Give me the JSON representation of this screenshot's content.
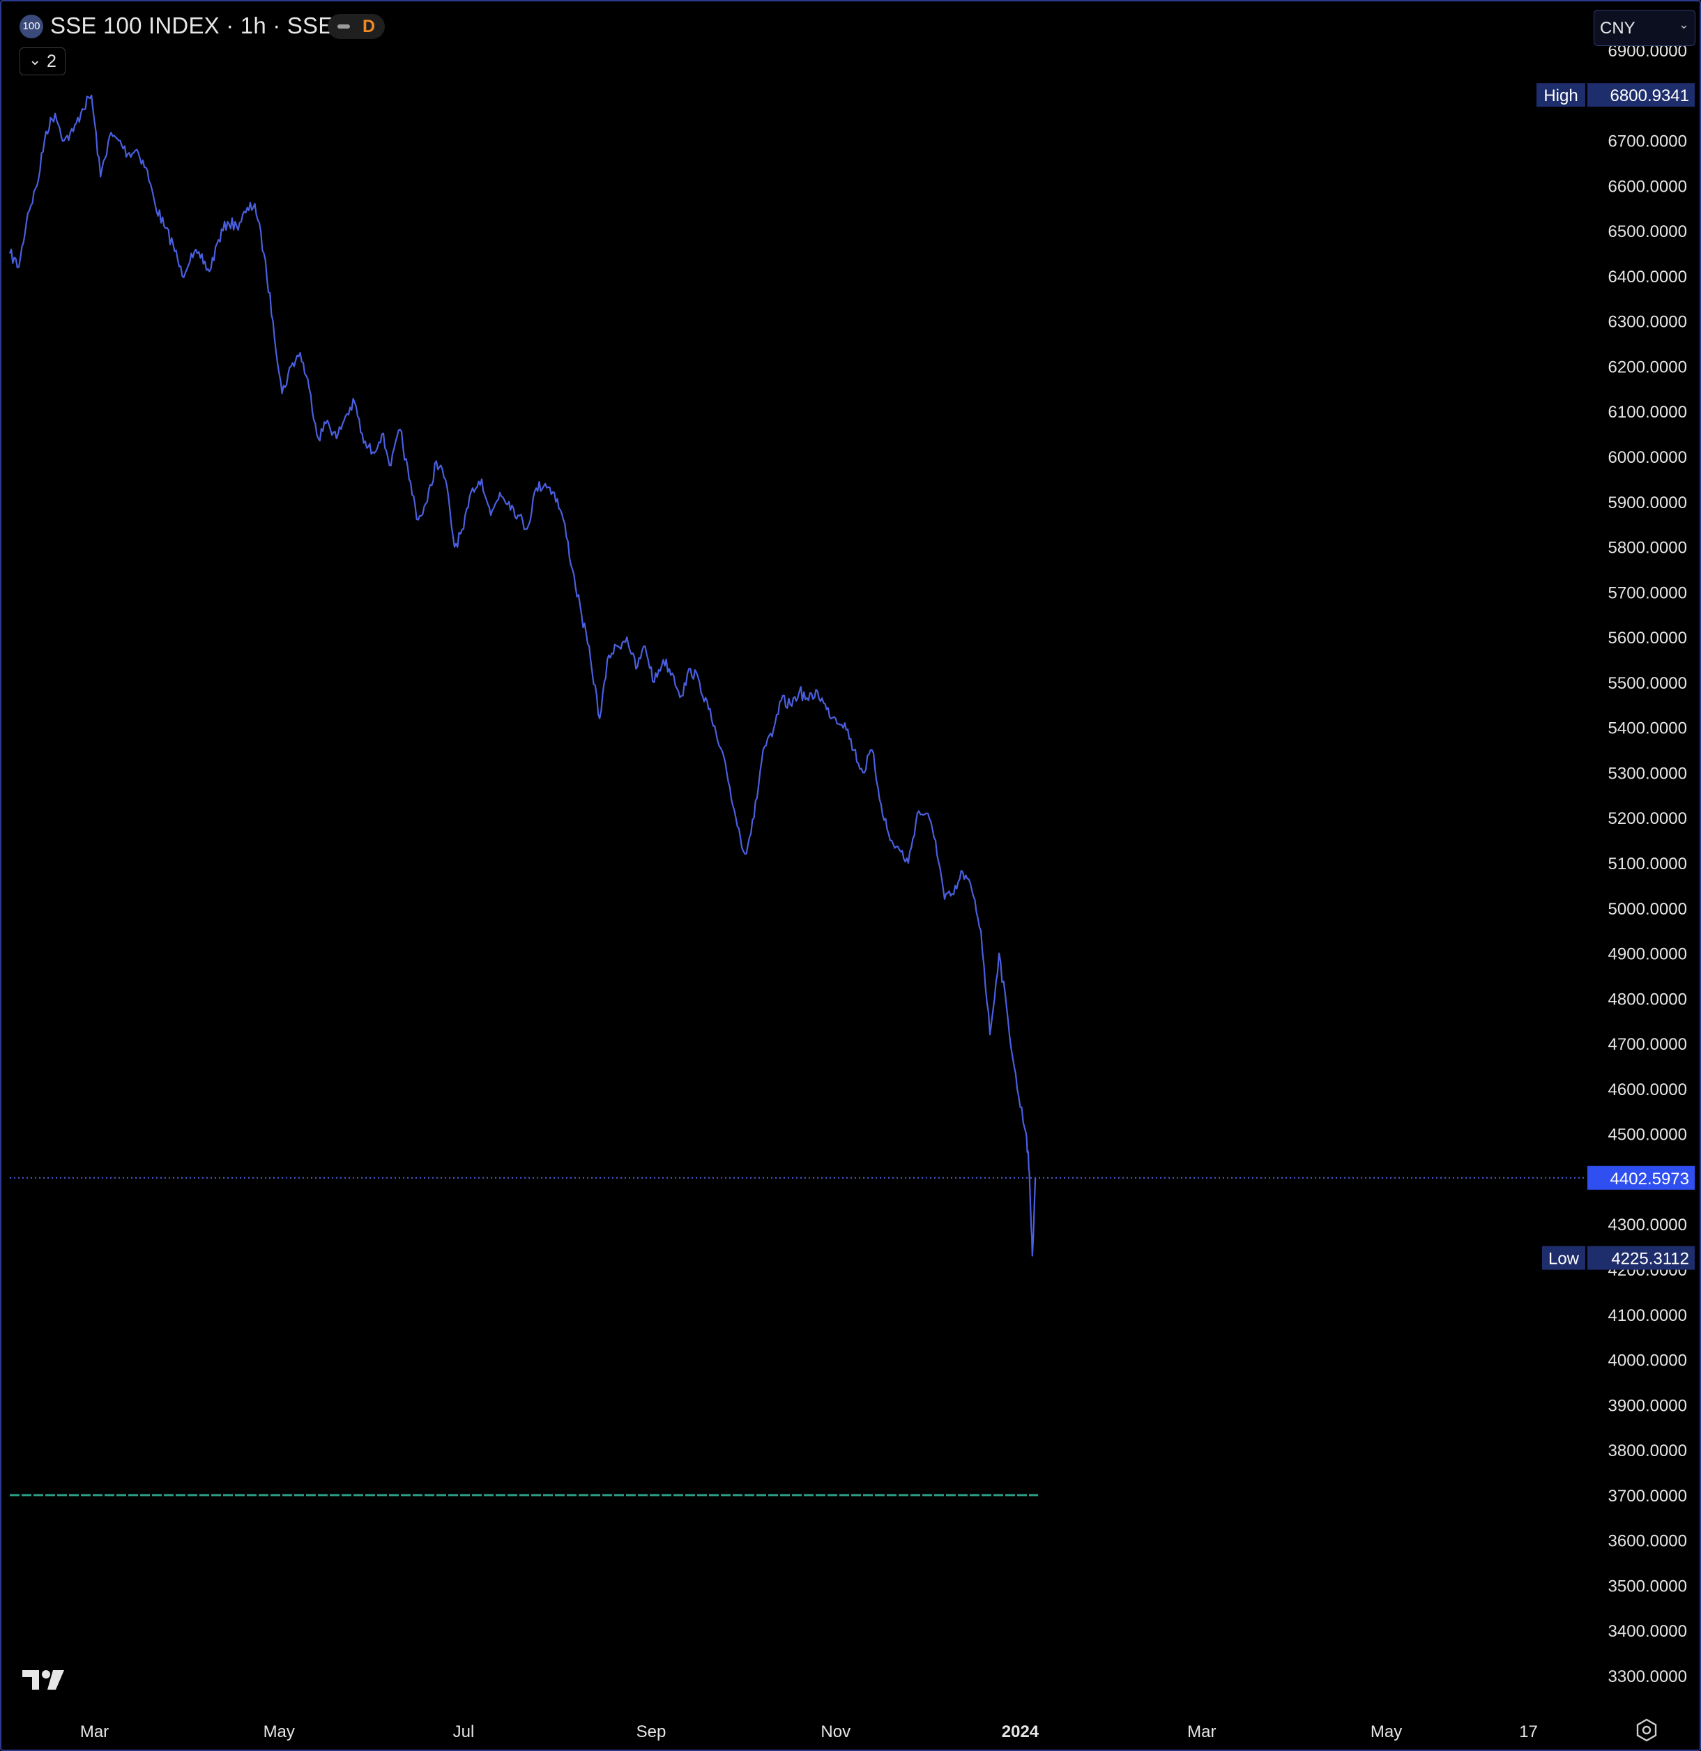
{
  "header": {
    "symbol_badge": "100",
    "title": "SSE 100 INDEX · 1h · SSE",
    "interval_badge": "D",
    "collapse_count": "2",
    "currency": "CNY"
  },
  "colors": {
    "line": "#4a5fe0",
    "accent_label_bg": "#1e2d6b",
    "current_label_bg": "#2f4ff0",
    "baseline": "#2a9d84",
    "axis_text": "#e6e6e6"
  },
  "chart_data": {
    "type": "line",
    "title": "SSE 100 INDEX",
    "xlabel": "",
    "ylabel": "",
    "ylim": [
      3215,
      7015
    ],
    "y_ticks": [
      6900,
      6800,
      6700,
      6600,
      6500,
      6400,
      6300,
      6200,
      6100,
      6000,
      5900,
      5800,
      5700,
      5600,
      5500,
      5400,
      5300,
      5200,
      5100,
      5000,
      4900,
      4800,
      4700,
      4600,
      4500,
      4400,
      4300,
      4200,
      4100,
      4000,
      3900,
      3800,
      3700,
      3600,
      3500,
      3400,
      3300
    ],
    "y_tick_labels": [
      "6900.0000",
      "6800.0000",
      "6700.0000",
      "6600.0000",
      "6500.0000",
      "6400.0000",
      "6300.0000",
      "6200.0000",
      "6100.0000",
      "6000.0000",
      "5900.0000",
      "5800.0000",
      "5700.0000",
      "5600.0000",
      "5500.0000",
      "5400.0000",
      "5300.0000",
      "5200.0000",
      "5100.0000",
      "5000.0000",
      "4900.0000",
      "4800.0000",
      "4700.0000",
      "4600.0000",
      "4500.0000",
      "4400.0000",
      "4300.0000",
      "4200.0000",
      "4100.0000",
      "4000.0000",
      "3900.0000",
      "3800.0000",
      "3700.0000",
      "3600.0000",
      "3500.0000",
      "3400.0000",
      "3300.0000"
    ],
    "x_range": [
      "2023-02-01",
      "2024-07-06"
    ],
    "x_ticks": [
      {
        "date": "2023-03-01",
        "label": "Mar",
        "bold": false
      },
      {
        "date": "2023-05-01",
        "label": "May",
        "bold": false
      },
      {
        "date": "2023-07-01",
        "label": "Jul",
        "bold": false
      },
      {
        "date": "2023-09-01",
        "label": "Sep",
        "bold": false
      },
      {
        "date": "2023-11-01",
        "label": "Nov",
        "bold": false
      },
      {
        "date": "2024-01-01",
        "label": "2024",
        "bold": true
      },
      {
        "date": "2024-03-01",
        "label": "Mar",
        "bold": false
      },
      {
        "date": "2024-05-01",
        "label": "May",
        "bold": false
      },
      {
        "date": "2024-06-17",
        "label": "17",
        "bold": false
      }
    ],
    "series": [
      {
        "points": [
          [
            "2023-02-01",
            6450
          ],
          [
            "2023-02-04",
            6420
          ],
          [
            "2023-02-07",
            6540
          ],
          [
            "2023-02-10",
            6600
          ],
          [
            "2023-02-13",
            6720
          ],
          [
            "2023-02-16",
            6760
          ],
          [
            "2023-02-19",
            6700
          ],
          [
            "2023-02-22",
            6720
          ],
          [
            "2023-02-25",
            6770
          ],
          [
            "2023-02-28",
            6800
          ],
          [
            "2023-03-03",
            6620
          ],
          [
            "2023-03-06",
            6710
          ],
          [
            "2023-03-09",
            6700
          ],
          [
            "2023-03-12",
            6670
          ],
          [
            "2023-03-15",
            6680
          ],
          [
            "2023-03-18",
            6640
          ],
          [
            "2023-03-21",
            6560
          ],
          [
            "2023-03-24",
            6510
          ],
          [
            "2023-03-27",
            6470
          ],
          [
            "2023-03-30",
            6400
          ],
          [
            "2023-04-02",
            6450
          ],
          [
            "2023-04-05",
            6440
          ],
          [
            "2023-04-08",
            6410
          ],
          [
            "2023-04-11",
            6480
          ],
          [
            "2023-04-14",
            6520
          ],
          [
            "2023-04-17",
            6510
          ],
          [
            "2023-04-20",
            6540
          ],
          [
            "2023-04-23",
            6560
          ],
          [
            "2023-04-26",
            6450
          ],
          [
            "2023-04-29",
            6300
          ],
          [
            "2023-05-02",
            6140
          ],
          [
            "2023-05-05",
            6200
          ],
          [
            "2023-05-08",
            6230
          ],
          [
            "2023-05-11",
            6150
          ],
          [
            "2023-05-14",
            6040
          ],
          [
            "2023-05-17",
            6080
          ],
          [
            "2023-05-20",
            6040
          ],
          [
            "2023-05-23",
            6090
          ],
          [
            "2023-05-26",
            6120
          ],
          [
            "2023-05-29",
            6030
          ],
          [
            "2023-06-01",
            6010
          ],
          [
            "2023-06-04",
            6050
          ],
          [
            "2023-06-07",
            5980
          ],
          [
            "2023-06-10",
            6060
          ],
          [
            "2023-06-13",
            5950
          ],
          [
            "2023-06-16",
            5860
          ],
          [
            "2023-06-19",
            5900
          ],
          [
            "2023-06-22",
            5990
          ],
          [
            "2023-06-25",
            5950
          ],
          [
            "2023-06-28",
            5800
          ],
          [
            "2023-07-01",
            5840
          ],
          [
            "2023-07-04",
            5930
          ],
          [
            "2023-07-07",
            5950
          ],
          [
            "2023-07-10",
            5870
          ],
          [
            "2023-07-13",
            5920
          ],
          [
            "2023-07-16",
            5900
          ],
          [
            "2023-07-19",
            5870
          ],
          [
            "2023-07-22",
            5840
          ],
          [
            "2023-07-25",
            5930
          ],
          [
            "2023-07-28",
            5940
          ],
          [
            "2023-07-31",
            5920
          ],
          [
            "2023-08-03",
            5860
          ],
          [
            "2023-08-06",
            5750
          ],
          [
            "2023-08-09",
            5650
          ],
          [
            "2023-08-12",
            5550
          ],
          [
            "2023-08-15",
            5420
          ],
          [
            "2023-08-18",
            5560
          ],
          [
            "2023-08-21",
            5580
          ],
          [
            "2023-08-24",
            5600
          ],
          [
            "2023-08-27",
            5530
          ],
          [
            "2023-08-30",
            5580
          ],
          [
            "2023-09-02",
            5500
          ],
          [
            "2023-09-05",
            5550
          ],
          [
            "2023-09-08",
            5520
          ],
          [
            "2023-09-11",
            5470
          ],
          [
            "2023-09-14",
            5530
          ],
          [
            "2023-09-17",
            5500
          ],
          [
            "2023-09-20",
            5440
          ],
          [
            "2023-09-23",
            5370
          ],
          [
            "2023-09-26",
            5300
          ],
          [
            "2023-09-29",
            5200
          ],
          [
            "2023-10-02",
            5120
          ],
          [
            "2023-10-05",
            5200
          ],
          [
            "2023-10-08",
            5350
          ],
          [
            "2023-10-11",
            5380
          ],
          [
            "2023-10-14",
            5460
          ],
          [
            "2023-10-17",
            5450
          ],
          [
            "2023-10-20",
            5480
          ],
          [
            "2023-10-23",
            5460
          ],
          [
            "2023-10-26",
            5480
          ],
          [
            "2023-10-29",
            5440
          ],
          [
            "2023-11-01",
            5420
          ],
          [
            "2023-11-04",
            5410
          ],
          [
            "2023-11-07",
            5350
          ],
          [
            "2023-11-10",
            5300
          ],
          [
            "2023-11-13",
            5350
          ],
          [
            "2023-11-16",
            5230
          ],
          [
            "2023-11-19",
            5150
          ],
          [
            "2023-11-22",
            5130
          ],
          [
            "2023-11-25",
            5100
          ],
          [
            "2023-11-28",
            5210
          ],
          [
            "2023-12-01",
            5210
          ],
          [
            "2023-12-04",
            5150
          ],
          [
            "2023-12-07",
            5020
          ],
          [
            "2023-12-10",
            5030
          ],
          [
            "2023-12-13",
            5080
          ],
          [
            "2023-12-16",
            5040
          ],
          [
            "2023-12-19",
            4950
          ],
          [
            "2023-12-22",
            4720
          ],
          [
            "2023-12-25",
            4900
          ],
          [
            "2023-12-28",
            4750
          ],
          [
            "2023-12-31",
            4600
          ],
          [
            "2024-01-03",
            4500
          ],
          [
            "2024-01-04",
            4415
          ],
          [
            "2024-01-05",
            4230
          ],
          [
            "2024-01-06",
            4402.5973
          ]
        ]
      }
    ],
    "baseline_value": 3700,
    "high": {
      "label": "High",
      "value": "6800.9341",
      "y": 6800.9341
    },
    "low": {
      "label": "Low",
      "value": "4225.3112",
      "y": 4225.3112
    },
    "current": {
      "value": "4402.5973",
      "y": 4402.5973
    },
    "grid": false,
    "legend": "none"
  }
}
